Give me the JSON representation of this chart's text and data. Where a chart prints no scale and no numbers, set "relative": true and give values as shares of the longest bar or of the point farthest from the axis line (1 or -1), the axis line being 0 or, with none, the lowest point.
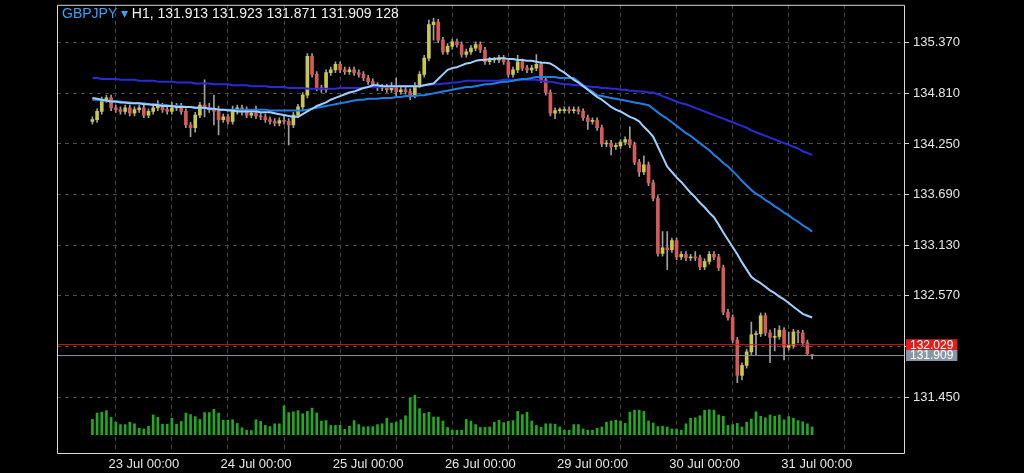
{
  "chart_data": [
    {
      "type": "candlestick",
      "title": "GBPJPY ▾",
      "subtitle": "H1, 131.913 131.923 131.871 131.909 128",
      "categories": [
        null,
        null,
        null,
        null,
        null,
        null,
        null,
        null,
        null,
        null,
        null,
        "23 Jul 00:00",
        null,
        null,
        null,
        null,
        null,
        null,
        null,
        null,
        null,
        null,
        null,
        null,
        null,
        null,
        null,
        null,
        null,
        null,
        null,
        null,
        null,
        null,
        null,
        "24 Jul 00:00",
        null,
        null,
        null,
        null,
        null,
        null,
        null,
        null,
        null,
        null,
        null,
        null,
        null,
        null,
        null,
        null,
        null,
        null,
        null,
        null,
        null,
        null,
        null,
        "25 Jul 00:00",
        null,
        null,
        null,
        null,
        null,
        null,
        null,
        null,
        null,
        null,
        null,
        null,
        null,
        null,
        null,
        null,
        null,
        null,
        null,
        null,
        null,
        null,
        null,
        "26 Jul 00:00",
        null,
        null,
        null,
        null,
        null,
        null,
        null,
        null,
        null,
        null,
        null,
        null,
        null,
        null,
        null,
        null,
        null,
        null,
        null,
        null,
        null,
        null,
        null,
        "29 Jul 00:00",
        null,
        null,
        null,
        null,
        null,
        null,
        null,
        null,
        null,
        null,
        null,
        null,
        null,
        null,
        null,
        null,
        null,
        null,
        null,
        null,
        null,
        null,
        null,
        "30 Jul 00:00",
        null,
        null,
        null,
        null,
        null,
        null,
        null,
        null,
        null,
        null,
        null,
        null,
        null,
        null,
        null,
        null,
        null,
        null,
        null,
        null,
        null,
        null,
        null,
        "31 Jul 00:00"
      ],
      "ohlc": [
        [
          134.5,
          134.55,
          134.47,
          134.52
        ],
        [
          134.52,
          134.64,
          134.49,
          134.61
        ],
        [
          134.61,
          134.77,
          134.58,
          134.74
        ],
        [
          134.74,
          134.79,
          134.71,
          134.76
        ],
        [
          134.76,
          134.79,
          134.62,
          134.65
        ],
        [
          134.65,
          134.68,
          134.6,
          134.63
        ],
        [
          134.63,
          134.66,
          134.58,
          134.61
        ],
        [
          134.61,
          134.68,
          134.58,
          134.65
        ],
        [
          134.65,
          134.68,
          134.56,
          134.59
        ],
        [
          134.59,
          134.66,
          134.56,
          134.63
        ],
        [
          134.63,
          134.68,
          134.6,
          134.65
        ],
        [
          134.65,
          134.68,
          134.54,
          134.57
        ],
        [
          134.57,
          134.64,
          134.54,
          134.61
        ],
        [
          134.61,
          134.7,
          134.58,
          134.65
        ],
        [
          134.65,
          134.73,
          134.62,
          134.67
        ],
        [
          134.67,
          134.7,
          134.6,
          134.63
        ],
        [
          134.63,
          134.66,
          134.58,
          134.61
        ],
        [
          134.61,
          134.71,
          134.58,
          134.65
        ],
        [
          134.65,
          134.7,
          134.62,
          134.67
        ],
        [
          134.67,
          134.7,
          134.58,
          134.61
        ],
        [
          134.61,
          134.64,
          134.43,
          134.46
        ],
        [
          134.46,
          134.49,
          134.33,
          134.43
        ],
        [
          134.43,
          134.6,
          134.38,
          134.57
        ],
        [
          134.57,
          134.71,
          134.54,
          134.68
        ],
        [
          134.68,
          134.96,
          134.55,
          134.65
        ],
        [
          134.65,
          134.7,
          134.6,
          134.63
        ],
        [
          134.63,
          134.79,
          134.46,
          134.61
        ],
        [
          134.61,
          134.67,
          134.35,
          134.52
        ],
        [
          134.52,
          134.58,
          134.49,
          134.55
        ],
        [
          134.55,
          134.58,
          134.47,
          134.5
        ],
        [
          134.5,
          134.67,
          134.47,
          134.61
        ],
        [
          134.61,
          134.68,
          134.58,
          134.65
        ],
        [
          134.65,
          134.68,
          134.57,
          134.63
        ],
        [
          134.63,
          134.66,
          134.54,
          134.57
        ],
        [
          134.57,
          134.62,
          134.54,
          134.59
        ],
        [
          134.59,
          134.67,
          134.53,
          134.56
        ],
        [
          134.56,
          134.59,
          134.52,
          134.55
        ],
        [
          134.55,
          134.58,
          134.49,
          134.52
        ],
        [
          134.52,
          134.55,
          134.47,
          134.5
        ],
        [
          134.5,
          134.53,
          134.45,
          134.48
        ],
        [
          134.48,
          134.54,
          134.45,
          134.51
        ],
        [
          134.51,
          134.56,
          134.47,
          134.5
        ],
        [
          134.5,
          134.53,
          134.24,
          134.46
        ],
        [
          134.46,
          134.6,
          134.43,
          134.57
        ],
        [
          134.57,
          134.69,
          134.54,
          134.66
        ],
        [
          134.66,
          134.82,
          134.63,
          134.79
        ],
        [
          134.79,
          135.25,
          134.76,
          135.22
        ],
        [
          135.22,
          135.25,
          134.99,
          135.02
        ],
        [
          135.02,
          135.05,
          134.84,
          134.87
        ],
        [
          134.87,
          134.9,
          134.82,
          134.85
        ],
        [
          134.85,
          135.07,
          134.82,
          135.04
        ],
        [
          135.04,
          135.1,
          135.01,
          135.07
        ],
        [
          135.07,
          135.16,
          135.04,
          135.13
        ],
        [
          135.13,
          135.16,
          135.04,
          135.07
        ],
        [
          135.07,
          135.1,
          135.02,
          135.05
        ],
        [
          135.05,
          135.1,
          135.02,
          135.07
        ],
        [
          135.07,
          135.1,
          135.01,
          135.04
        ],
        [
          135.04,
          135.07,
          134.99,
          135.02
        ],
        [
          135.02,
          135.05,
          134.95,
          134.98
        ],
        [
          134.98,
          135.01,
          134.91,
          134.94
        ],
        [
          134.94,
          134.97,
          134.87,
          134.9
        ],
        [
          134.9,
          134.93,
          134.84,
          134.87
        ],
        [
          134.87,
          134.91,
          134.84,
          134.88
        ],
        [
          134.88,
          134.91,
          134.82,
          134.85
        ],
        [
          134.85,
          134.93,
          134.82,
          134.87
        ],
        [
          134.87,
          134.98,
          134.78,
          134.83
        ],
        [
          134.83,
          134.88,
          134.8,
          134.85
        ],
        [
          134.85,
          134.88,
          134.8,
          134.83
        ],
        [
          134.83,
          134.86,
          134.74,
          134.79
        ],
        [
          134.79,
          134.93,
          134.76,
          134.9
        ],
        [
          134.9,
          135.05,
          134.87,
          135.02
        ],
        [
          135.02,
          135.23,
          134.99,
          135.2
        ],
        [
          135.2,
          135.62,
          135.17,
          135.57
        ],
        [
          135.57,
          135.64,
          135.4,
          135.6
        ],
        [
          135.6,
          135.63,
          135.37,
          135.4
        ],
        [
          135.4,
          135.43,
          135.24,
          135.27
        ],
        [
          135.27,
          135.36,
          135.24,
          135.33
        ],
        [
          135.33,
          135.41,
          135.3,
          135.38
        ],
        [
          135.38,
          135.41,
          135.32,
          135.35
        ],
        [
          135.35,
          135.38,
          135.21,
          135.24
        ],
        [
          135.24,
          135.3,
          135.21,
          135.27
        ],
        [
          135.27,
          135.34,
          135.24,
          135.31
        ],
        [
          135.31,
          135.38,
          135.28,
          135.35
        ],
        [
          135.35,
          135.38,
          135.26,
          135.29
        ],
        [
          135.29,
          135.32,
          135.13,
          135.16
        ],
        [
          135.16,
          135.21,
          135.13,
          135.18
        ],
        [
          135.18,
          135.21,
          135.15,
          135.18
        ],
        [
          135.18,
          135.23,
          135.15,
          135.2
        ],
        [
          135.2,
          135.23,
          135.13,
          135.16
        ],
        [
          135.16,
          135.19,
          134.99,
          135.02
        ],
        [
          135.02,
          135.1,
          134.99,
          135.07
        ],
        [
          135.07,
          135.23,
          135.04,
          135.16
        ],
        [
          135.16,
          135.19,
          135.06,
          135.09
        ],
        [
          135.09,
          135.12,
          135.04,
          135.07
        ],
        [
          135.07,
          135.12,
          135.04,
          135.09
        ],
        [
          135.09,
          135.24,
          135.06,
          135.13
        ],
        [
          135.13,
          135.16,
          134.93,
          134.96
        ],
        [
          134.96,
          134.99,
          134.79,
          134.82
        ],
        [
          134.82,
          134.85,
          134.56,
          134.59
        ],
        [
          134.59,
          134.65,
          134.53,
          134.62
        ],
        [
          134.62,
          134.65,
          134.59,
          134.62
        ],
        [
          134.62,
          134.66,
          134.59,
          134.63
        ],
        [
          134.63,
          134.66,
          134.59,
          134.62
        ],
        [
          134.62,
          134.66,
          134.59,
          134.63
        ],
        [
          134.63,
          134.66,
          134.58,
          134.61
        ],
        [
          134.61,
          134.64,
          134.51,
          134.54
        ],
        [
          134.54,
          134.57,
          134.41,
          134.5
        ],
        [
          134.5,
          134.54,
          134.47,
          134.51
        ],
        [
          134.51,
          134.54,
          134.4,
          134.43
        ],
        [
          134.43,
          134.46,
          134.22,
          134.25
        ],
        [
          134.25,
          134.29,
          134.22,
          134.26
        ],
        [
          134.26,
          134.29,
          134.13,
          134.22
        ],
        [
          134.22,
          134.26,
          134.19,
          134.23
        ],
        [
          134.23,
          134.3,
          134.2,
          134.27
        ],
        [
          134.27,
          134.33,
          134.24,
          134.3
        ],
        [
          134.3,
          134.44,
          134.21,
          134.24
        ],
        [
          134.24,
          134.27,
          134.02,
          134.05
        ],
        [
          134.05,
          134.08,
          133.89,
          133.94
        ],
        [
          133.94,
          134.12,
          133.91,
          134.02
        ],
        [
          134.02,
          134.05,
          133.79,
          133.82
        ],
        [
          133.82,
          133.85,
          133.62,
          133.65
        ],
        [
          133.65,
          133.68,
          133.01,
          133.04
        ],
        [
          133.04,
          133.28,
          133.01,
          133.1
        ],
        [
          133.1,
          133.28,
          132.86,
          133.08
        ],
        [
          133.08,
          133.21,
          133.05,
          133.18
        ],
        [
          133.18,
          133.21,
          132.97,
          133.0
        ],
        [
          133.0,
          133.06,
          132.97,
          133.03
        ],
        [
          133.03,
          133.06,
          132.96,
          132.99
        ],
        [
          132.99,
          133.03,
          132.96,
          133.0
        ],
        [
          133.0,
          133.06,
          132.96,
          132.99
        ],
        [
          132.99,
          133.02,
          132.86,
          132.89
        ],
        [
          132.89,
          132.98,
          132.86,
          132.95
        ],
        [
          132.95,
          133.06,
          132.92,
          133.03
        ],
        [
          133.03,
          133.06,
          132.97,
          133.0
        ],
        [
          133.0,
          133.03,
          132.85,
          132.88
        ],
        [
          132.88,
          132.91,
          132.36,
          132.39
        ],
        [
          132.39,
          132.42,
          132.3,
          132.33
        ],
        [
          132.33,
          132.36,
          132.05,
          132.08
        ],
        [
          132.08,
          132.11,
          131.61,
          131.69
        ],
        [
          131.69,
          131.83,
          131.64,
          131.8
        ],
        [
          131.8,
          131.98,
          131.77,
          131.95
        ],
        [
          131.95,
          132.28,
          131.92,
          132.14
        ],
        [
          132.14,
          132.18,
          131.91,
          132.15
        ],
        [
          132.15,
          132.38,
          132.12,
          132.35
        ],
        [
          132.35,
          132.38,
          132.13,
          132.16
        ],
        [
          132.16,
          132.19,
          131.83,
          132.11
        ],
        [
          132.11,
          132.21,
          131.96,
          132.12
        ],
        [
          132.12,
          132.24,
          132.09,
          132.19
        ],
        [
          132.19,
          132.22,
          131.86,
          132.0
        ],
        [
          132.0,
          132.17,
          131.97,
          132.02
        ],
        [
          132.02,
          132.2,
          131.99,
          132.17
        ],
        [
          132.17,
          132.19,
          132.05,
          132.16
        ],
        [
          132.16,
          132.19,
          132.02,
          132.05
        ],
        [
          132.05,
          132.08,
          131.92,
          131.93
        ],
        [
          131.913,
          131.923,
          131.871,
          131.909
        ],
        null
      ],
      "series": [
        {
          "type": "line",
          "color": "#9fd0ff",
          "values": [
            134.76,
            134.75,
            134.74,
            134.73,
            134.72,
            134.72,
            134.71,
            134.71,
            134.7,
            134.7,
            134.7,
            134.69,
            134.69,
            134.68,
            134.68,
            134.67,
            134.67,
            134.67,
            134.66,
            134.66,
            134.66,
            134.66,
            134.65,
            134.65,
            134.65,
            134.64,
            134.64,
            134.63,
            134.63,
            134.62,
            134.62,
            134.61,
            134.61,
            134.61,
            134.61,
            134.61,
            134.6,
            134.6,
            134.6,
            134.59,
            134.58,
            134.57,
            134.56,
            134.55,
            134.55,
            134.58,
            134.61,
            134.64,
            134.67,
            134.69,
            134.71,
            134.74,
            134.76,
            134.78,
            134.8,
            134.82,
            134.83,
            134.85,
            134.87,
            134.88,
            134.9,
            134.9,
            134.89,
            134.89,
            134.89,
            134.89,
            134.89,
            134.89,
            134.89,
            134.89,
            134.89,
            134.9,
            134.91,
            134.92,
            134.97,
            135.02,
            135.07,
            135.09,
            135.1,
            135.12,
            135.14,
            135.15,
            135.17,
            135.18,
            135.18,
            135.19,
            135.19,
            135.2,
            135.2,
            135.19,
            135.19,
            135.18,
            135.18,
            135.17,
            135.17,
            135.16,
            135.15,
            135.15,
            135.14,
            135.11,
            135.07,
            135.04,
            135.0,
            134.96,
            134.93,
            134.89,
            134.85,
            134.81,
            134.77,
            134.74,
            134.7,
            134.66,
            134.63,
            134.61,
            134.58,
            134.55,
            134.53,
            134.5,
            134.44,
            134.39,
            134.33,
            134.22,
            134.11,
            134.0,
            133.94,
            133.88,
            133.83,
            133.77,
            133.71,
            133.66,
            133.6,
            133.55,
            133.49,
            133.44,
            133.36,
            133.27,
            133.19,
            133.11,
            133.03,
            132.94,
            132.86,
            132.78,
            132.74,
            132.71,
            132.67,
            132.63,
            132.6,
            132.56,
            132.53,
            132.49,
            132.45,
            132.41,
            132.37,
            132.35,
            132.33,
            null
          ]
        },
        {
          "type": "line",
          "color": "#1f7fe6",
          "values": [
            134.74,
            134.74,
            134.73,
            134.73,
            134.72,
            134.72,
            134.72,
            134.71,
            134.71,
            134.7,
            134.7,
            134.7,
            134.69,
            134.69,
            134.69,
            134.68,
            134.68,
            134.67,
            134.67,
            134.67,
            134.66,
            134.66,
            134.65,
            134.65,
            134.65,
            134.64,
            134.64,
            134.63,
            134.63,
            134.63,
            134.63,
            134.63,
            134.63,
            134.63,
            134.63,
            134.63,
            134.63,
            134.63,
            134.62,
            134.62,
            134.62,
            134.62,
            134.62,
            134.62,
            134.62,
            134.62,
            134.63,
            134.64,
            134.65,
            134.66,
            134.67,
            134.68,
            134.69,
            134.7,
            134.71,
            134.72,
            134.73,
            134.74,
            134.74,
            134.75,
            134.75,
            134.75,
            134.76,
            134.76,
            134.76,
            134.77,
            134.77,
            134.78,
            134.78,
            134.78,
            134.79,
            134.79,
            134.8,
            134.81,
            134.82,
            134.83,
            134.84,
            134.85,
            134.86,
            134.87,
            134.88,
            134.88,
            134.89,
            134.9,
            134.91,
            134.91,
            134.92,
            134.93,
            134.94,
            134.94,
            134.95,
            134.96,
            134.97,
            134.97,
            134.98,
            134.99,
            134.99,
            134.99,
            134.99,
            134.99,
            134.98,
            134.98,
            134.98,
            134.98,
            134.94,
            134.9,
            134.86,
            134.83,
            134.79,
            134.78,
            134.77,
            134.76,
            134.75,
            134.74,
            134.73,
            134.72,
            134.71,
            134.7,
            134.69,
            134.68,
            134.64,
            134.6,
            134.56,
            134.53,
            134.49,
            134.45,
            134.41,
            134.37,
            134.34,
            134.3,
            134.26,
            134.22,
            134.18,
            134.13,
            134.09,
            134.04,
            134.0,
            133.95,
            133.9,
            133.84,
            133.79,
            133.74,
            133.7,
            133.67,
            133.63,
            133.6,
            133.56,
            133.53,
            133.49,
            133.46,
            133.42,
            133.39,
            133.35,
            133.32,
            133.28,
            null
          ]
        },
        {
          "type": "line",
          "color": "#2b2bd6",
          "values": [
            134.98,
            134.98,
            134.97,
            134.97,
            134.97,
            134.97,
            134.96,
            134.96,
            134.96,
            134.96,
            134.95,
            134.95,
            134.95,
            134.95,
            134.94,
            134.94,
            134.94,
            134.94,
            134.93,
            134.93,
            134.93,
            134.93,
            134.92,
            134.92,
            134.92,
            134.92,
            134.91,
            134.91,
            134.91,
            134.91,
            134.9,
            134.9,
            134.9,
            134.9,
            134.89,
            134.89,
            134.89,
            134.89,
            134.88,
            134.88,
            134.88,
            134.88,
            134.87,
            134.87,
            134.87,
            134.87,
            134.86,
            134.86,
            134.86,
            134.86,
            134.86,
            134.86,
            134.86,
            134.87,
            134.87,
            134.87,
            134.87,
            134.87,
            134.87,
            134.88,
            134.88,
            134.88,
            134.88,
            134.88,
            134.88,
            134.89,
            134.89,
            134.89,
            134.89,
            134.89,
            134.89,
            134.9,
            134.9,
            134.91,
            134.91,
            134.92,
            134.92,
            134.93,
            134.93,
            134.94,
            134.95,
            134.95,
            134.95,
            134.95,
            134.95,
            134.95,
            134.95,
            134.95,
            134.96,
            134.96,
            134.96,
            134.96,
            134.96,
            134.96,
            134.96,
            134.96,
            134.95,
            134.94,
            134.94,
            134.93,
            134.92,
            134.91,
            134.91,
            134.9,
            134.9,
            134.89,
            134.89,
            134.88,
            134.88,
            134.87,
            134.87,
            134.86,
            134.86,
            134.85,
            134.85,
            134.84,
            134.84,
            134.83,
            134.83,
            134.82,
            134.82,
            134.8,
            134.78,
            134.76,
            134.74,
            134.72,
            134.7,
            134.69,
            134.67,
            134.65,
            134.63,
            134.61,
            134.59,
            134.57,
            134.55,
            134.53,
            134.51,
            134.49,
            134.47,
            134.45,
            134.43,
            134.4,
            134.38,
            134.36,
            134.34,
            134.32,
            134.3,
            134.28,
            134.26,
            134.24,
            134.22,
            134.2,
            134.17,
            134.15,
            134.13,
            null
          ]
        }
      ],
      "ylim": [
        130.82,
        135.79
      ],
      "yticks": [
        {
          "value": 131.45,
          "label": "131.450"
        },
        {
          "value": 132.01,
          "label": null
        },
        {
          "value": 132.57,
          "label": "132.570"
        },
        {
          "value": 133.13,
          "label": "133.130"
        },
        {
          "value": 133.69,
          "label": "133.690"
        },
        {
          "value": 134.25,
          "label": "134.250"
        },
        {
          "value": 134.81,
          "label": "134.810"
        },
        {
          "value": 135.37,
          "label": "135.370"
        }
      ],
      "ref_lines": [
        {
          "axis": "y",
          "value": 132.029,
          "label": "132.029",
          "color": "#e0201c"
        },
        {
          "axis": "y",
          "value": 131.909,
          "label": "131.909",
          "color": "#8a96a3"
        }
      ],
      "grid": true
    },
    {
      "type": "bar",
      "relative": true,
      "color": "#22a822",
      "values": [
        0.39,
        0.55,
        0.57,
        0.61,
        0.44,
        0.32,
        0.26,
        0.26,
        0.32,
        0.28,
        0.17,
        0.15,
        0.22,
        0.5,
        0.44,
        0.27,
        0.27,
        0.42,
        0.27,
        0.34,
        0.55,
        0.51,
        0.46,
        0.39,
        0.56,
        0.56,
        0.64,
        0.55,
        0.37,
        0.37,
        0.38,
        0.29,
        0.18,
        0.12,
        0.11,
        0.38,
        0.34,
        0.24,
        0.21,
        0.28,
        0.28,
        0.73,
        0.56,
        0.58,
        0.61,
        0.53,
        0.59,
        0.67,
        0.55,
        0.35,
        0.36,
        0.24,
        0.24,
        0.24,
        0.14,
        0.22,
        0.36,
        0.26,
        0.2,
        0.21,
        0.21,
        0.26,
        0.28,
        0.42,
        0.3,
        0.32,
        0.38,
        0.48,
        0.92,
        1.0,
        0.66,
        0.54,
        0.57,
        0.45,
        0.45,
        0.35,
        0.19,
        0.12,
        0.12,
        0.12,
        0.39,
        0.35,
        0.26,
        0.19,
        0.19,
        0.2,
        0.32,
        0.37,
        0.31,
        0.34,
        0.36,
        0.59,
        0.51,
        0.57,
        0.35,
        0.24,
        0.19,
        0.28,
        0.28,
        0.27,
        0.2,
        0.12,
        0.12,
        0.26,
        0.26,
        0.15,
        0.12,
        0.12,
        0.17,
        0.2,
        0.32,
        0.35,
        0.37,
        0.35,
        0.29,
        0.57,
        0.62,
        0.62,
        0.59,
        0.35,
        0.3,
        0.21,
        0.22,
        0.2,
        0.15,
        0.15,
        0.12,
        0.28,
        0.42,
        0.43,
        0.48,
        0.62,
        0.63,
        0.62,
        0.5,
        0.47,
        0.24,
        0.26,
        0.29,
        0.2,
        0.32,
        0.4,
        0.58,
        0.47,
        0.43,
        0.5,
        0.47,
        0.5,
        0.38,
        0.46,
        0.42,
        0.36,
        0.33,
        0.28,
        0.2,
        null
      ],
      "categories": [
        null,
        null,
        null,
        null,
        null,
        null,
        null,
        null,
        null,
        null,
        null,
        null,
        null,
        null,
        null,
        null,
        null,
        null,
        null,
        null,
        null,
        null,
        null,
        null,
        null,
        null,
        null,
        null,
        null,
        null,
        null,
        null,
        null,
        null,
        null,
        null,
        null,
        null,
        null,
        null,
        null,
        null,
        null,
        null,
        null,
        null,
        null,
        null,
        null,
        null,
        null,
        null,
        null,
        null,
        null,
        null,
        null,
        null,
        null,
        null,
        null,
        null,
        null,
        null,
        null,
        null,
        null,
        null,
        null,
        null,
        null,
        null,
        null,
        null,
        null,
        null,
        null,
        null,
        null,
        null,
        null,
        null,
        null,
        null,
        null,
        null,
        null,
        null,
        null,
        null,
        null,
        null,
        null,
        null,
        null,
        null,
        null,
        null,
        null,
        null,
        null,
        null,
        null,
        null,
        null,
        null,
        null,
        null,
        null,
        null,
        null,
        null,
        null,
        null,
        null,
        null,
        null,
        null,
        null,
        null,
        null,
        null,
        null,
        null,
        null,
        null,
        null,
        null,
        null,
        null,
        null,
        null,
        null,
        null,
        null,
        null,
        null,
        null,
        null,
        null,
        null,
        null,
        null,
        null,
        null,
        null,
        null,
        null,
        null,
        null,
        null,
        null,
        null,
        null,
        null,
        null
      ]
    }
  ]
}
